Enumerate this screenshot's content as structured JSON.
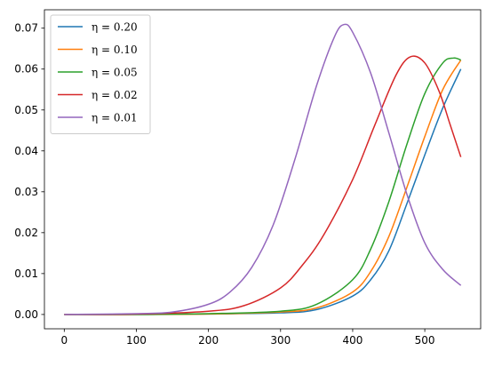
{
  "chart_data": {
    "type": "line",
    "xlim": [
      -27.5,
      577.5
    ],
    "ylim": [
      -0.0035,
      0.0745
    ],
    "x_ticks": [
      0,
      100,
      200,
      300,
      400,
      500
    ],
    "y_ticks": [
      0.0,
      0.01,
      0.02,
      0.03,
      0.04,
      0.05,
      0.06,
      0.07
    ],
    "x_tick_labels": [
      "0",
      "100",
      "200",
      "300",
      "400",
      "500"
    ],
    "y_tick_labels": [
      "0.00",
      "0.01",
      "0.02",
      "0.03",
      "0.04",
      "0.05",
      "0.06",
      "0.07"
    ],
    "legend_placement": "top-left",
    "grid": false,
    "series": [
      {
        "name": "η = 0.20",
        "color": "#1f77b4",
        "points": [
          [
            0,
            0
          ],
          [
            100,
            0
          ],
          [
            200,
            0.0001
          ],
          [
            300,
            0.0004
          ],
          [
            350,
            0.0012
          ],
          [
            400,
            0.0045
          ],
          [
            425,
            0.0085
          ],
          [
            450,
            0.0155
          ],
          [
            475,
            0.027
          ],
          [
            500,
            0.039
          ],
          [
            525,
            0.0505
          ],
          [
            550,
            0.06
          ]
        ]
      },
      {
        "name": "η = 0.10",
        "color": "#ff7f0e",
        "points": [
          [
            0,
            0
          ],
          [
            100,
            0
          ],
          [
            200,
            0.0001
          ],
          [
            300,
            0.0006
          ],
          [
            350,
            0.0016
          ],
          [
            400,
            0.0055
          ],
          [
            425,
            0.0105
          ],
          [
            450,
            0.019
          ],
          [
            475,
            0.031
          ],
          [
            500,
            0.0435
          ],
          [
            525,
            0.055
          ],
          [
            550,
            0.0622
          ]
        ]
      },
      {
        "name": "η = 0.05",
        "color": "#2ca02c",
        "points": [
          [
            0,
            0
          ],
          [
            100,
            0
          ],
          [
            200,
            0.0002
          ],
          [
            300,
            0.0008
          ],
          [
            350,
            0.0025
          ],
          [
            400,
            0.0085
          ],
          [
            425,
            0.016
          ],
          [
            450,
            0.0275
          ],
          [
            475,
            0.0415
          ],
          [
            500,
            0.054
          ],
          [
            525,
            0.0615
          ],
          [
            540,
            0.0627
          ],
          [
            550,
            0.0622
          ]
        ]
      },
      {
        "name": "η = 0.02",
        "color": "#d62728",
        "points": [
          [
            0,
            0
          ],
          [
            100,
            0.0001
          ],
          [
            200,
            0.0008
          ],
          [
            250,
            0.0022
          ],
          [
            300,
            0.0065
          ],
          [
            330,
            0.012
          ],
          [
            360,
            0.0195
          ],
          [
            400,
            0.033
          ],
          [
            430,
            0.046
          ],
          [
            460,
            0.0585
          ],
          [
            480,
            0.063
          ],
          [
            500,
            0.0615
          ],
          [
            520,
            0.0545
          ],
          [
            535,
            0.0465
          ],
          [
            550,
            0.0385
          ]
        ]
      },
      {
        "name": "η = 0.01",
        "color": "#9467bd",
        "points": [
          [
            0,
            0
          ],
          [
            100,
            0.0002
          ],
          [
            150,
            0.0006
          ],
          [
            200,
            0.0025
          ],
          [
            230,
            0.0055
          ],
          [
            260,
            0.0115
          ],
          [
            290,
            0.022
          ],
          [
            320,
            0.038
          ],
          [
            350,
            0.056
          ],
          [
            375,
            0.068
          ],
          [
            388,
            0.0709
          ],
          [
            400,
            0.069
          ],
          [
            425,
            0.059
          ],
          [
            450,
            0.0445
          ],
          [
            475,
            0.0295
          ],
          [
            500,
            0.0175
          ],
          [
            525,
            0.011
          ],
          [
            550,
            0.0071
          ]
        ]
      }
    ]
  }
}
